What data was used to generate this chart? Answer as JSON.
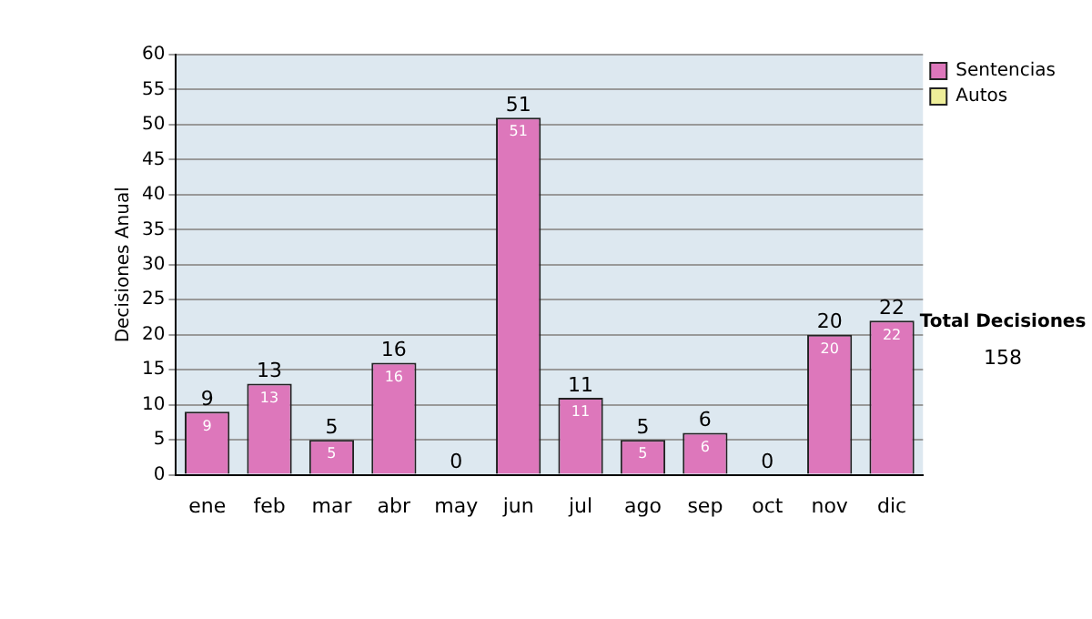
{
  "chart_data": {
    "type": "bar",
    "stacked": true,
    "ylabel": "Decisiones Anual",
    "categories": [
      "ene",
      "feb",
      "mar",
      "abr",
      "may",
      "jun",
      "jul",
      "ago",
      "sep",
      "oct",
      "nov",
      "dic"
    ],
    "series": [
      {
        "name": "Sentencias",
        "color": "#dd77bb",
        "values": [
          9,
          13,
          5,
          16,
          0,
          51,
          11,
          5,
          6,
          0,
          20,
          22
        ],
        "value_labels": [
          "9",
          "13",
          "5",
          "16",
          null,
          "51",
          "11",
          "5",
          "6",
          null,
          "20",
          "22"
        ]
      },
      {
        "name": "Autos",
        "color": "#eeee99",
        "values": [
          0,
          0,
          0,
          0,
          0,
          0,
          0,
          0,
          0,
          0,
          0,
          0
        ]
      }
    ],
    "totals": [
      "9",
      "13",
      "5",
      "16",
      "0",
      "51",
      "11",
      "5",
      "6",
      "0",
      "20",
      "22"
    ],
    "ylim": [
      0,
      60
    ],
    "yticks": [
      0,
      5,
      10,
      15,
      20,
      25,
      30,
      35,
      40,
      45,
      50,
      55,
      60
    ],
    "grid": "y",
    "legend": "right",
    "annotations": [
      "Total Decisiones",
      "158"
    ]
  }
}
